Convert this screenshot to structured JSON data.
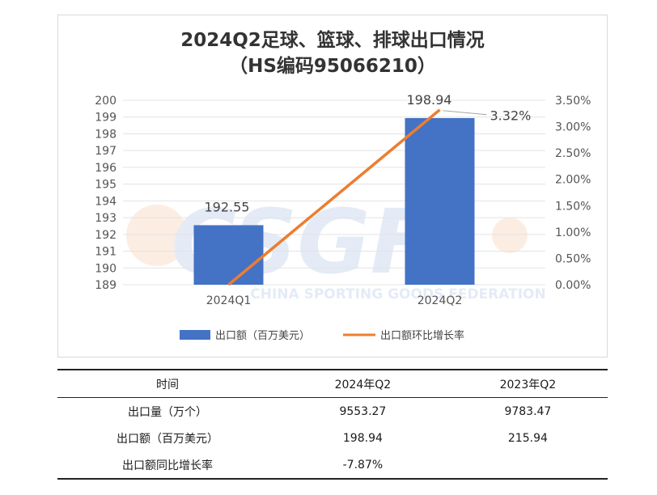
{
  "chart_data": {
    "type": "bar",
    "title_lines": [
      "2024Q2足球、篮球、排球出口情况",
      "（HS编码95066210）"
    ],
    "categories": [
      "2024Q1",
      "2024Q2"
    ],
    "series": [
      {
        "name": "出口额（百万美元）",
        "kind": "bar",
        "axis": "left",
        "values": [
          192.55,
          198.94
        ],
        "labels": [
          "192.55",
          "198.94"
        ],
        "color": "#4472C4"
      },
      {
        "name": "出口额环比增长率",
        "kind": "line",
        "axis": "right",
        "values": [
          0.0,
          3.32
        ],
        "labels": [
          "",
          "3.32%"
        ],
        "color": "#ED7D31"
      }
    ],
    "left_axis": {
      "ylim": [
        189,
        200
      ],
      "ticks": [
        "189",
        "190",
        "191",
        "192",
        "193",
        "194",
        "195",
        "196",
        "197",
        "198",
        "199",
        "200"
      ]
    },
    "right_axis": {
      "ylim": [
        0,
        3.5
      ],
      "ticks": [
        "0.00%",
        "0.50%",
        "1.00%",
        "1.50%",
        "2.00%",
        "2.50%",
        "3.00%",
        "3.50%"
      ]
    },
    "grid": true,
    "legend_position": "bottom"
  },
  "watermark": {
    "logo": "CSGF",
    "text": "CHINA SPORTING GOODS FEDERATION"
  },
  "table": {
    "headers": [
      "时间",
      "2024年Q2",
      "2023年Q2"
    ],
    "rows": [
      [
        "出口量（万个）",
        "9553.27",
        "9783.47"
      ],
      [
        "出口额（百万美元）",
        "198.94",
        "215.94"
      ],
      [
        "出口额同比增长率",
        "-7.87%",
        ""
      ]
    ]
  }
}
